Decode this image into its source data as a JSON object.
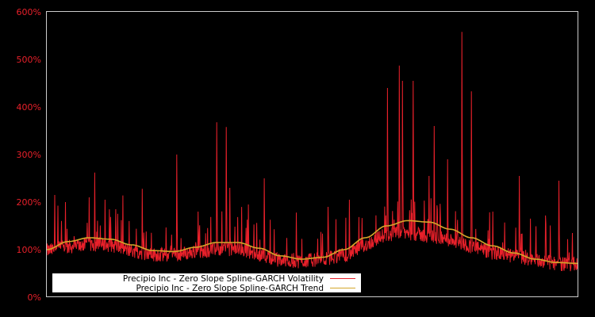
{
  "chart_data": {
    "type": "line",
    "title": "",
    "xlabel": "",
    "ylabel": "",
    "ylim": [
      0,
      600
    ],
    "y_ticks": [
      "0%",
      "100%",
      "200%",
      "300%",
      "400%",
      "500%",
      "600%"
    ],
    "y_tick_values": [
      0,
      100,
      200,
      300,
      400,
      500,
      600
    ],
    "grid": false,
    "legend_position": "lower-left",
    "background": "#000000",
    "axis_color": "#cccccc",
    "tick_color": "#e8202a",
    "series": [
      {
        "name": "Precipio Inc - Zero Slope Spline-GARCH Volatility",
        "color": "#e8202a",
        "baseline_approx": [
          {
            "x": 0.0,
            "y": 85
          },
          {
            "x": 0.1,
            "y": 90
          },
          {
            "x": 0.2,
            "y": 72
          },
          {
            "x": 0.35,
            "y": 80
          },
          {
            "x": 0.45,
            "y": 60
          },
          {
            "x": 0.55,
            "y": 68
          },
          {
            "x": 0.65,
            "y": 108
          },
          {
            "x": 0.75,
            "y": 95
          },
          {
            "x": 0.85,
            "y": 72
          },
          {
            "x": 1.0,
            "y": 55
          }
        ],
        "spikes": [
          {
            "x": 0.015,
            "y": 215
          },
          {
            "x": 0.035,
            "y": 200
          },
          {
            "x": 0.08,
            "y": 210
          },
          {
            "x": 0.09,
            "y": 262
          },
          {
            "x": 0.11,
            "y": 205
          },
          {
            "x": 0.13,
            "y": 185
          },
          {
            "x": 0.18,
            "y": 228
          },
          {
            "x": 0.245,
            "y": 300
          },
          {
            "x": 0.285,
            "y": 180
          },
          {
            "x": 0.32,
            "y": 368
          },
          {
            "x": 0.338,
            "y": 358
          },
          {
            "x": 0.345,
            "y": 230
          },
          {
            "x": 0.38,
            "y": 195
          },
          {
            "x": 0.41,
            "y": 250
          },
          {
            "x": 0.47,
            "y": 178
          },
          {
            "x": 0.53,
            "y": 190
          },
          {
            "x": 0.57,
            "y": 205
          },
          {
            "x": 0.62,
            "y": 172
          },
          {
            "x": 0.642,
            "y": 440
          },
          {
            "x": 0.664,
            "y": 487
          },
          {
            "x": 0.67,
            "y": 455
          },
          {
            "x": 0.69,
            "y": 455
          },
          {
            "x": 0.72,
            "y": 255
          },
          {
            "x": 0.73,
            "y": 360
          },
          {
            "x": 0.755,
            "y": 290
          },
          {
            "x": 0.782,
            "y": 558
          },
          {
            "x": 0.8,
            "y": 433
          },
          {
            "x": 0.84,
            "y": 180
          },
          {
            "x": 0.89,
            "y": 255
          },
          {
            "x": 0.94,
            "y": 155
          },
          {
            "x": 0.965,
            "y": 245
          },
          {
            "x": 0.99,
            "y": 135
          }
        ]
      },
      {
        "name": "Precipio Inc - Zero Slope Spline-GARCH Trend",
        "color": "#d4a62a",
        "points": [
          {
            "x": 0.0,
            "y": 100
          },
          {
            "x": 0.04,
            "y": 117
          },
          {
            "x": 0.08,
            "y": 125
          },
          {
            "x": 0.12,
            "y": 122
          },
          {
            "x": 0.16,
            "y": 110
          },
          {
            "x": 0.2,
            "y": 98
          },
          {
            "x": 0.24,
            "y": 96
          },
          {
            "x": 0.28,
            "y": 105
          },
          {
            "x": 0.32,
            "y": 115
          },
          {
            "x": 0.36,
            "y": 115
          },
          {
            "x": 0.4,
            "y": 103
          },
          {
            "x": 0.44,
            "y": 87
          },
          {
            "x": 0.48,
            "y": 80
          },
          {
            "x": 0.52,
            "y": 84
          },
          {
            "x": 0.56,
            "y": 100
          },
          {
            "x": 0.6,
            "y": 125
          },
          {
            "x": 0.64,
            "y": 150
          },
          {
            "x": 0.68,
            "y": 161
          },
          {
            "x": 0.72,
            "y": 158
          },
          {
            "x": 0.76,
            "y": 143
          },
          {
            "x": 0.8,
            "y": 125
          },
          {
            "x": 0.84,
            "y": 108
          },
          {
            "x": 0.88,
            "y": 93
          },
          {
            "x": 0.92,
            "y": 80
          },
          {
            "x": 0.96,
            "y": 73
          },
          {
            "x": 1.0,
            "y": 71
          }
        ]
      }
    ]
  },
  "legend": {
    "items": [
      {
        "label": "Precipio Inc - Zero Slope Spline-GARCH Volatility",
        "color": "#e8202a"
      },
      {
        "label": "Precipio Inc - Zero Slope Spline-GARCH Trend",
        "color": "#d4a62a"
      }
    ]
  }
}
